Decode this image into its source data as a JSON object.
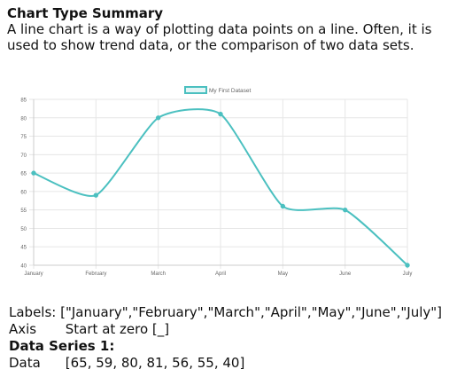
{
  "summary": {
    "title": "Chart Type Summary",
    "description": "A line chart is a way of plotting data points on a line. Often, it is used to show trend data, or the comparison of two data sets."
  },
  "chart_data": {
    "type": "line",
    "categories": [
      "January",
      "February",
      "March",
      "April",
      "May",
      "June",
      "July"
    ],
    "series": [
      {
        "name": "My First Dataset",
        "values": [
          65,
          59,
          80,
          81,
          56,
          55,
          40
        ],
        "color": "#4bc0c0",
        "fill": false,
        "tension": 0.1
      }
    ],
    "yticks": [
      40,
      45,
      50,
      55,
      60,
      65,
      70,
      75,
      80,
      85
    ],
    "ylim": [
      40,
      85
    ],
    "grid": true,
    "legend": "top-center",
    "grid_color": "#e6e6e6"
  },
  "info": {
    "labels_key": "Labels:",
    "labels_value": "[\"January\",\"February\",\"March\",\"April\",\"May\",\"June\",\"July\"]",
    "axis_key": "Axis",
    "axis_value": "Start at zero [_]",
    "series_title": "Data Series 1:",
    "data_key": "Data",
    "data_value": "[65, 59, 80, 81, 56, 55, 40]"
  }
}
